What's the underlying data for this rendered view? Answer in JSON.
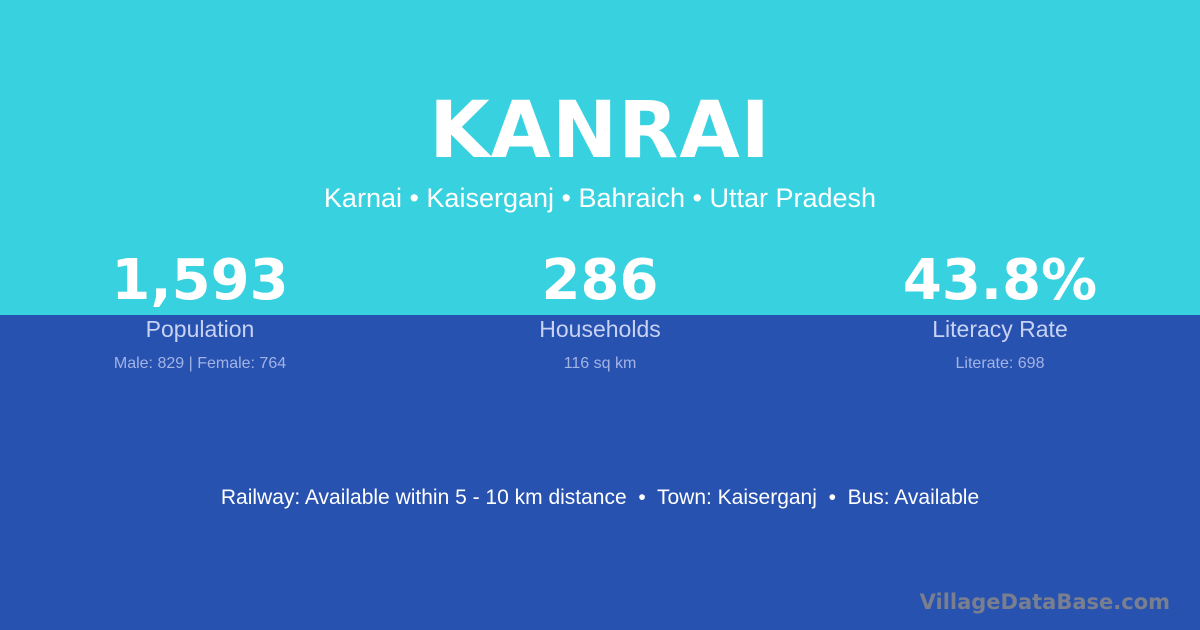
{
  "colors": {
    "top_background": "#38d1df",
    "bottom_background": "#2852b0"
  },
  "header": {
    "title": "KANRAI",
    "subtitle": "Karnai • Kaiserganj • Bahraich • Uttar Pradesh"
  },
  "stats": [
    {
      "value": "1,593",
      "label": "Population",
      "detail": "Male: 829 | Female: 764"
    },
    {
      "value": "286",
      "label": "Households",
      "detail": "116 sq km"
    },
    {
      "value": "43.8%",
      "label": "Literacy Rate",
      "detail": "Literate: 698"
    }
  ],
  "transport": "Railway: Available within 5 - 10 km distance  •  Town: Kaiserganj  •  Bus: Available",
  "watermark": "VillageDataBase.com"
}
